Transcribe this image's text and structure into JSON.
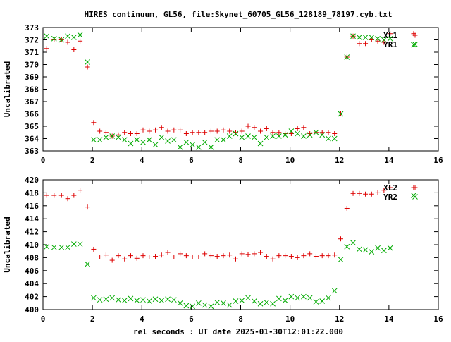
{
  "title": "HIRES continuum, GL56, file:Skynet_60705_GL56_128189_78197.cyb.txt",
  "xlabel": "rel seconds : UT date 2025-01-30T12:01:22.000",
  "chart_data": [
    {
      "type": "scatter",
      "ylabel": "Uncalibrated",
      "xlim": [
        0,
        16
      ],
      "ylim": [
        363,
        373
      ],
      "xticks": [
        0,
        2,
        4,
        6,
        8,
        10,
        12,
        14,
        16
      ],
      "yticks": [
        363,
        364,
        365,
        366,
        367,
        368,
        369,
        370,
        371,
        372,
        373
      ],
      "legend_position": "top-right",
      "series": [
        {
          "name": "XL1",
          "marker": "plus",
          "color": "#dd0000",
          "x": [
            0.15,
            0.45,
            0.75,
            1.0,
            1.25,
            1.5,
            1.8,
            2.05,
            2.3,
            2.55,
            2.8,
            3.05,
            3.3,
            3.55,
            3.8,
            4.05,
            4.3,
            4.55,
            4.8,
            5.05,
            5.3,
            5.55,
            5.8,
            6.05,
            6.3,
            6.55,
            6.8,
            7.05,
            7.3,
            7.55,
            7.8,
            8.05,
            8.3,
            8.55,
            8.8,
            9.05,
            9.3,
            9.55,
            9.8,
            10.05,
            10.3,
            10.55,
            10.8,
            11.05,
            11.3,
            11.55,
            11.8,
            12.05,
            12.3,
            12.55,
            12.8,
            13.05,
            13.3,
            13.55,
            13.8,
            14.05,
            15.0
          ],
          "y": [
            371.3,
            372.0,
            372.0,
            371.8,
            371.2,
            371.9,
            369.8,
            365.3,
            364.6,
            364.5,
            364.2,
            364.3,
            364.5,
            364.4,
            364.4,
            364.7,
            364.6,
            364.7,
            364.9,
            364.6,
            364.7,
            364.7,
            364.4,
            364.5,
            364.5,
            364.5,
            364.6,
            364.6,
            364.7,
            364.6,
            364.5,
            364.6,
            365.0,
            364.9,
            364.6,
            364.8,
            364.5,
            364.5,
            364.4,
            364.4,
            364.8,
            364.9,
            364.4,
            364.5,
            364.5,
            364.5,
            364.4,
            366.0,
            370.6,
            372.3,
            371.7,
            371.7,
            372.0,
            371.9,
            371.8,
            372.5,
            372.5
          ]
        },
        {
          "name": "YR1",
          "marker": "cross",
          "color": "#00aa00",
          "x": [
            0.15,
            0.45,
            0.75,
            1.0,
            1.25,
            1.5,
            1.8,
            2.05,
            2.3,
            2.55,
            2.8,
            3.05,
            3.3,
            3.55,
            3.8,
            4.05,
            4.3,
            4.55,
            4.8,
            5.05,
            5.3,
            5.55,
            5.8,
            6.05,
            6.3,
            6.55,
            6.8,
            7.05,
            7.3,
            7.55,
            7.8,
            8.05,
            8.3,
            8.55,
            8.8,
            9.05,
            9.3,
            9.55,
            9.8,
            10.05,
            10.3,
            10.55,
            10.8,
            11.05,
            11.3,
            11.55,
            11.8,
            12.05,
            12.3,
            12.55,
            12.8,
            13.05,
            13.3,
            13.55,
            13.8,
            14.05,
            15.0
          ],
          "y": [
            372.3,
            372.1,
            372.0,
            372.3,
            372.2,
            372.4,
            370.2,
            363.9,
            363.9,
            364.1,
            364.2,
            364.1,
            363.9,
            363.6,
            363.9,
            363.7,
            363.9,
            363.5,
            364.1,
            363.8,
            363.9,
            363.3,
            363.7,
            363.5,
            363.3,
            363.7,
            363.3,
            363.9,
            363.9,
            364.2,
            364.4,
            364.1,
            364.2,
            364.1,
            363.6,
            364.1,
            364.2,
            364.2,
            364.3,
            364.6,
            364.4,
            364.2,
            364.3,
            364.5,
            364.3,
            364.0,
            364.0,
            366.0,
            370.6,
            372.3,
            372.2,
            372.2,
            372.2,
            372.1,
            372.0,
            372.1,
            371.6
          ]
        }
      ]
    },
    {
      "type": "scatter",
      "ylabel": "Uncalibrated",
      "xlim": [
        0,
        16
      ],
      "ylim": [
        400,
        420
      ],
      "xticks": [
        0,
        2,
        4,
        6,
        8,
        10,
        12,
        14,
        16
      ],
      "yticks": [
        400,
        402,
        404,
        406,
        408,
        410,
        412,
        414,
        416,
        418,
        420
      ],
      "legend_position": "top-right",
      "series": [
        {
          "name": "XL2",
          "marker": "plus",
          "color": "#dd0000",
          "x": [
            0.15,
            0.45,
            0.75,
            1.0,
            1.25,
            1.5,
            1.8,
            2.05,
            2.3,
            2.55,
            2.8,
            3.05,
            3.3,
            3.55,
            3.8,
            4.05,
            4.3,
            4.55,
            4.8,
            5.05,
            5.3,
            5.55,
            5.8,
            6.05,
            6.3,
            6.55,
            6.8,
            7.05,
            7.3,
            7.55,
            7.8,
            8.05,
            8.3,
            8.55,
            8.8,
            9.05,
            9.3,
            9.55,
            9.8,
            10.05,
            10.3,
            10.55,
            10.8,
            11.05,
            11.3,
            11.55,
            11.8,
            12.05,
            12.3,
            12.55,
            12.8,
            13.05,
            13.3,
            13.55,
            13.8,
            14.05,
            15.0
          ],
          "y": [
            417.6,
            417.6,
            417.6,
            417.1,
            417.6,
            418.4,
            415.8,
            409.3,
            408.1,
            408.4,
            407.6,
            408.3,
            407.8,
            408.3,
            407.9,
            408.3,
            408.1,
            408.2,
            408.4,
            408.8,
            408.1,
            408.6,
            408.3,
            408.1,
            408.1,
            408.6,
            408.3,
            408.2,
            408.3,
            408.4,
            407.8,
            408.6,
            408.5,
            408.6,
            408.8,
            408.2,
            407.8,
            408.3,
            408.3,
            408.2,
            408.0,
            408.3,
            408.6,
            408.2,
            408.3,
            408.3,
            408.4,
            410.9,
            415.6,
            417.9,
            417.9,
            417.8,
            417.8,
            418.0,
            418.4,
            418.8,
            418.8
          ]
        },
        {
          "name": "YR2",
          "marker": "cross",
          "color": "#00aa00",
          "x": [
            0.15,
            0.45,
            0.75,
            1.0,
            1.25,
            1.5,
            1.8,
            2.05,
            2.3,
            2.55,
            2.8,
            3.05,
            3.3,
            3.55,
            3.8,
            4.05,
            4.3,
            4.55,
            4.8,
            5.05,
            5.3,
            5.55,
            5.8,
            6.05,
            6.3,
            6.55,
            6.8,
            7.05,
            7.3,
            7.55,
            7.8,
            8.05,
            8.3,
            8.55,
            8.8,
            9.05,
            9.3,
            9.55,
            9.8,
            10.05,
            10.3,
            10.55,
            10.8,
            11.05,
            11.3,
            11.55,
            11.8,
            12.05,
            12.3,
            12.55,
            12.8,
            13.05,
            13.3,
            13.55,
            13.8,
            14.05,
            15.0
          ],
          "y": [
            409.7,
            409.6,
            409.6,
            409.6,
            410.1,
            410.1,
            407.0,
            401.8,
            401.5,
            401.6,
            401.8,
            401.5,
            401.4,
            401.7,
            401.4,
            401.5,
            401.3,
            401.6,
            401.4,
            401.6,
            401.5,
            401.0,
            400.6,
            400.5,
            401.0,
            400.7,
            400.5,
            401.1,
            401.0,
            400.7,
            401.3,
            401.4,
            401.8,
            401.3,
            400.9,
            401.1,
            400.9,
            401.7,
            401.4,
            402.0,
            401.8,
            402.0,
            401.8,
            401.2,
            401.3,
            401.8,
            402.9,
            407.7,
            409.7,
            410.3,
            409.3,
            409.2,
            408.9,
            409.5,
            409.1,
            409.5,
            417.6
          ]
        }
      ]
    }
  ]
}
